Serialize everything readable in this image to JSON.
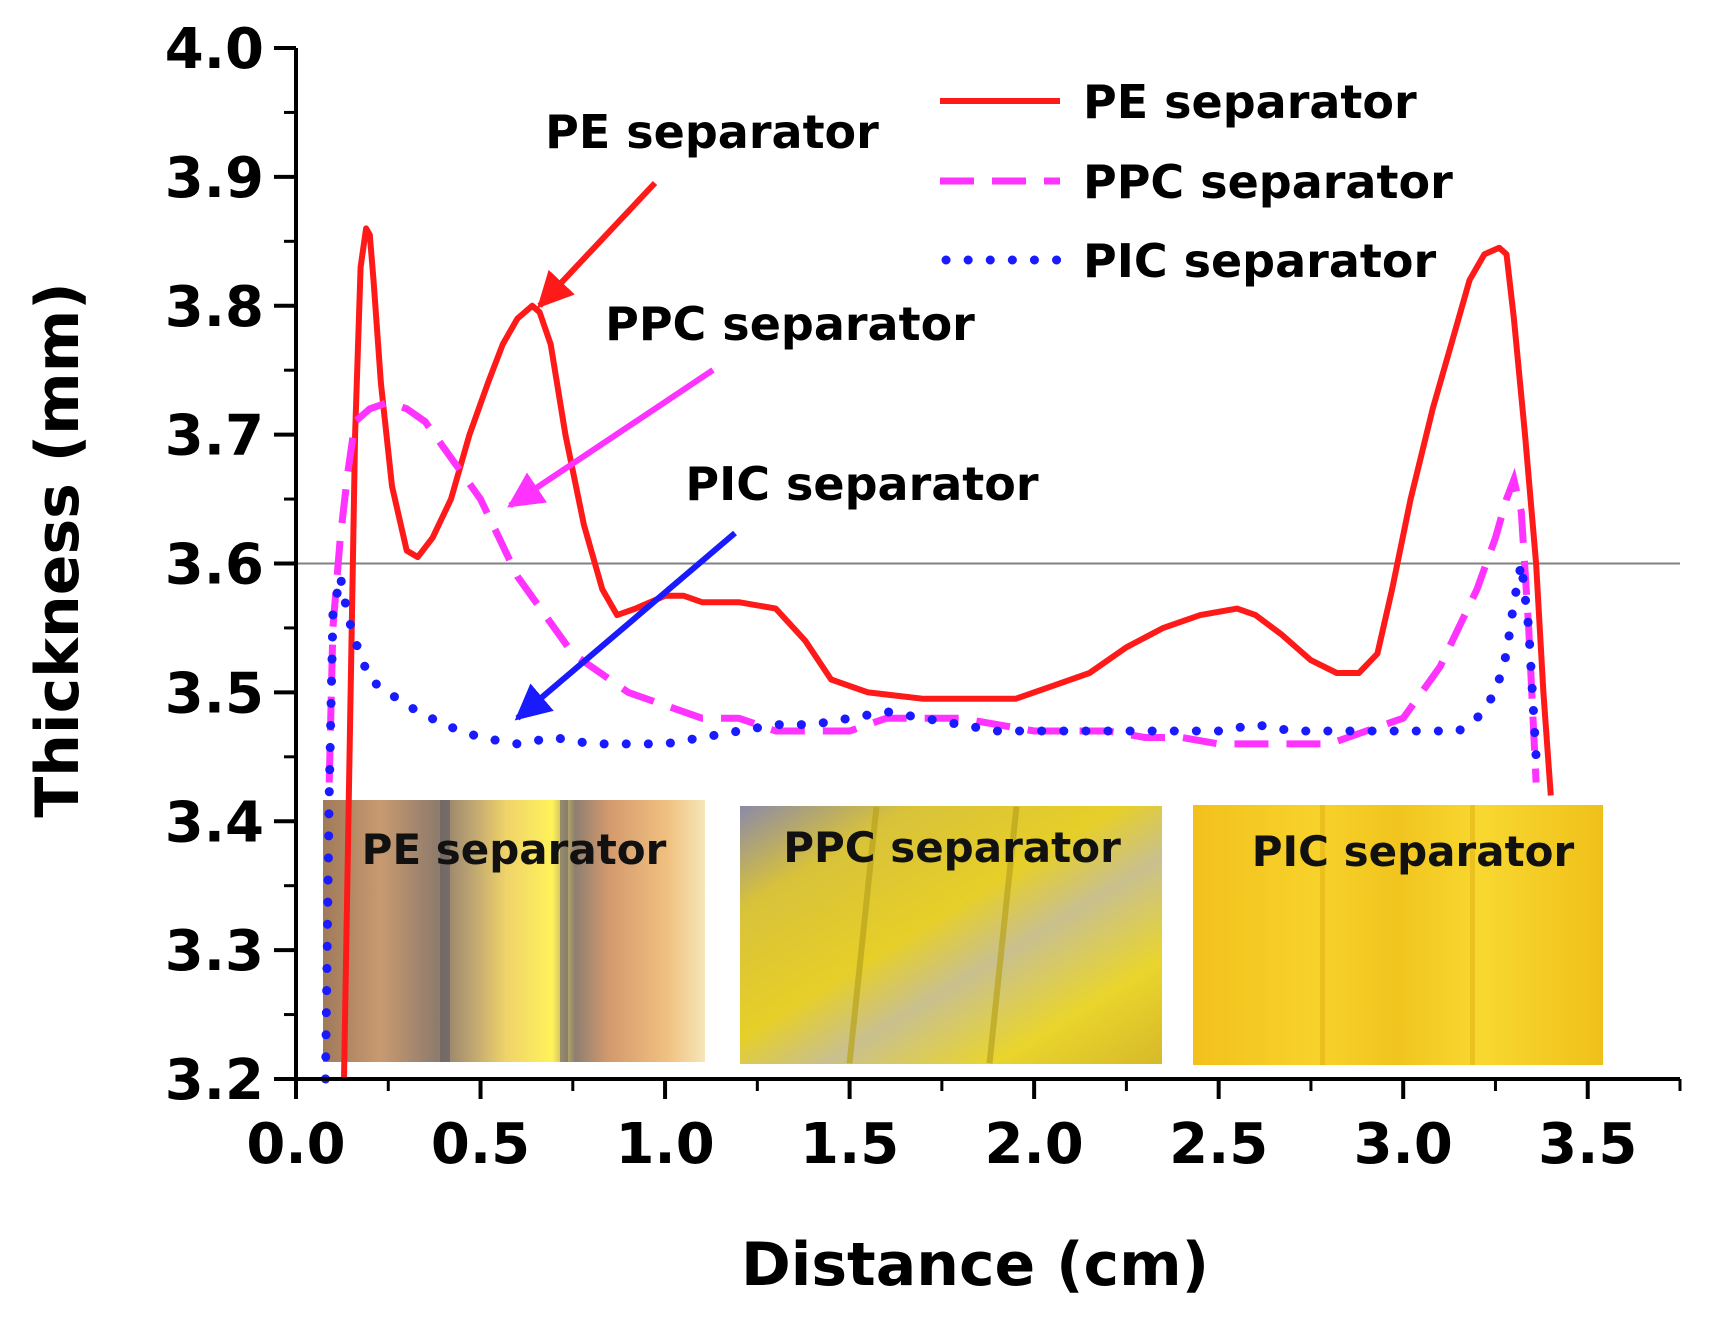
{
  "chart_data": {
    "type": "line",
    "title": "",
    "xlabel": "Distance (cm)",
    "ylabel": "Thickness (mm)",
    "xlim": [
      0.0,
      3.75
    ],
    "ylim": [
      3.2,
      4.0
    ],
    "x_ticks": [
      "0.0",
      "0.5",
      "1.0",
      "1.5",
      "2.0",
      "2.5",
      "3.0",
      "3.5"
    ],
    "y_ticks": [
      "3.2",
      "3.3",
      "3.4",
      "3.5",
      "3.6",
      "3.7",
      "3.8",
      "3.9",
      "4.0"
    ],
    "reference_line": {
      "y": 3.6
    },
    "legend_position": "top-right",
    "series": [
      {
        "name": "PE separator",
        "color": "#ff1a1a",
        "style": "solid",
        "x": [
          0.13,
          0.145,
          0.16,
          0.175,
          0.19,
          0.2,
          0.21,
          0.23,
          0.26,
          0.3,
          0.33,
          0.37,
          0.42,
          0.47,
          0.52,
          0.56,
          0.6,
          0.64,
          0.66,
          0.69,
          0.73,
          0.78,
          0.83,
          0.87,
          0.92,
          1.0,
          1.05,
          1.1,
          1.2,
          1.3,
          1.38,
          1.45,
          1.55,
          1.7,
          1.85,
          1.95,
          2.05,
          2.15,
          2.25,
          2.35,
          2.45,
          2.55,
          2.6,
          2.67,
          2.75,
          2.82,
          2.88,
          2.93,
          2.97,
          3.02,
          3.08,
          3.13,
          3.18,
          3.22,
          3.26,
          3.28,
          3.3,
          3.33,
          3.36,
          3.38,
          3.4
        ],
        "values": [
          3.2,
          3.45,
          3.7,
          3.83,
          3.86,
          3.855,
          3.82,
          3.74,
          3.66,
          3.61,
          3.605,
          3.62,
          3.65,
          3.7,
          3.74,
          3.77,
          3.79,
          3.8,
          3.795,
          3.77,
          3.7,
          3.63,
          3.58,
          3.56,
          3.565,
          3.575,
          3.575,
          3.57,
          3.57,
          3.565,
          3.54,
          3.51,
          3.5,
          3.495,
          3.495,
          3.495,
          3.505,
          3.515,
          3.535,
          3.55,
          3.56,
          3.565,
          3.56,
          3.545,
          3.525,
          3.515,
          3.515,
          3.53,
          3.58,
          3.65,
          3.72,
          3.77,
          3.82,
          3.84,
          3.845,
          3.84,
          3.79,
          3.7,
          3.6,
          3.5,
          3.42
        ]
      },
      {
        "name": "PPC separator",
        "color": "#ff33ff",
        "style": "dashed",
        "x": [
          0.09,
          0.1,
          0.12,
          0.14,
          0.16,
          0.2,
          0.25,
          0.3,
          0.35,
          0.4,
          0.45,
          0.5,
          0.55,
          0.6,
          0.65,
          0.7,
          0.75,
          0.8,
          0.9,
          1.0,
          1.1,
          1.2,
          1.3,
          1.4,
          1.5,
          1.6,
          1.7,
          1.8,
          1.9,
          2.0,
          2.1,
          2.2,
          2.3,
          2.4,
          2.5,
          2.6,
          2.7,
          2.8,
          2.9,
          3.0,
          3.05,
          3.1,
          3.15,
          3.2,
          3.25,
          3.28,
          3.3,
          3.32,
          3.34,
          3.36
        ],
        "values": [
          3.43,
          3.55,
          3.62,
          3.67,
          3.71,
          3.72,
          3.725,
          3.72,
          3.71,
          3.69,
          3.67,
          3.65,
          3.62,
          3.59,
          3.57,
          3.55,
          3.53,
          3.52,
          3.5,
          3.49,
          3.48,
          3.48,
          3.47,
          3.47,
          3.47,
          3.48,
          3.48,
          3.48,
          3.475,
          3.47,
          3.47,
          3.47,
          3.465,
          3.465,
          3.46,
          3.46,
          3.46,
          3.46,
          3.47,
          3.48,
          3.5,
          3.52,
          3.55,
          3.58,
          3.62,
          3.65,
          3.665,
          3.64,
          3.55,
          3.43
        ]
      },
      {
        "name": "PIC separator",
        "color": "#1a1aff",
        "style": "dotted",
        "x": [
          0.08,
          0.09,
          0.1,
          0.12,
          0.14,
          0.16,
          0.2,
          0.3,
          0.4,
          0.5,
          0.6,
          0.7,
          0.8,
          0.9,
          1.0,
          1.1,
          1.2,
          1.3,
          1.4,
          1.5,
          1.6,
          1.7,
          1.8,
          1.9,
          2.0,
          2.1,
          2.2,
          2.3,
          2.4,
          2.5,
          2.6,
          2.7,
          2.8,
          2.9,
          3.0,
          3.1,
          3.15,
          3.2,
          3.25,
          3.28,
          3.3,
          3.32,
          3.34,
          3.36
        ],
        "values": [
          3.2,
          3.42,
          3.56,
          3.59,
          3.56,
          3.54,
          3.51,
          3.49,
          3.475,
          3.465,
          3.46,
          3.465,
          3.46,
          3.46,
          3.46,
          3.465,
          3.47,
          3.475,
          3.475,
          3.48,
          3.485,
          3.48,
          3.475,
          3.47,
          3.47,
          3.47,
          3.47,
          3.47,
          3.47,
          3.47,
          3.475,
          3.47,
          3.47,
          3.47,
          3.47,
          3.47,
          3.47,
          3.48,
          3.5,
          3.53,
          3.57,
          3.6,
          3.55,
          3.45
        ]
      }
    ],
    "annotations": [
      {
        "text": "PE separator",
        "color": "#ff1a1a",
        "target": [
          0.66,
          3.8
        ]
      },
      {
        "text": "PPC separator",
        "color": "#ff33ff",
        "target": [
          0.58,
          3.645
        ]
      },
      {
        "text": "PIC separator",
        "color": "#1a1aff",
        "target": [
          0.6,
          3.48
        ]
      }
    ],
    "inset_photos": [
      {
        "label": "PE separator"
      },
      {
        "label": "PPC separator"
      },
      {
        "label": "PIC separator"
      }
    ]
  }
}
